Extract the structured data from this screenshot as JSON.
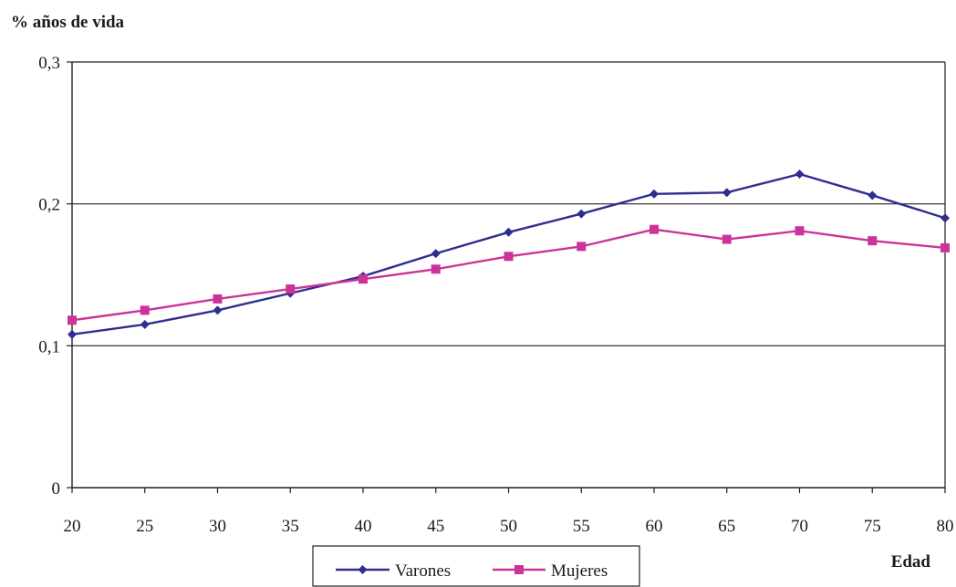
{
  "chart_data": {
    "type": "line",
    "title": "",
    "ylabel": "% años de vida",
    "xlabel": "Edad",
    "x": [
      20,
      25,
      30,
      35,
      40,
      45,
      50,
      55,
      60,
      65,
      70,
      75,
      80
    ],
    "xticks": [
      "20",
      "25",
      "30",
      "35",
      "40",
      "45",
      "50",
      "55",
      "60",
      "65",
      "70",
      "75",
      "80"
    ],
    "ylim": [
      0,
      0.3
    ],
    "yticks": [
      0,
      0.1,
      0.2,
      0.3
    ],
    "ytick_labels": [
      "0",
      "0,1",
      "0,2",
      "0,3"
    ],
    "grid": "horizontal",
    "legend_position": "bottom",
    "series": [
      {
        "name": "Varones",
        "color": "#2e2e8f",
        "marker": "diamond",
        "values": [
          0.108,
          0.115,
          0.125,
          0.137,
          0.149,
          0.165,
          0.18,
          0.193,
          0.207,
          0.208,
          0.221,
          0.206,
          0.19
        ]
      },
      {
        "name": "Mujeres",
        "color": "#cc3399",
        "marker": "square",
        "values": [
          0.118,
          0.125,
          0.133,
          0.14,
          0.147,
          0.154,
          0.163,
          0.17,
          0.182,
          0.175,
          0.181,
          0.174,
          0.169
        ]
      }
    ]
  }
}
